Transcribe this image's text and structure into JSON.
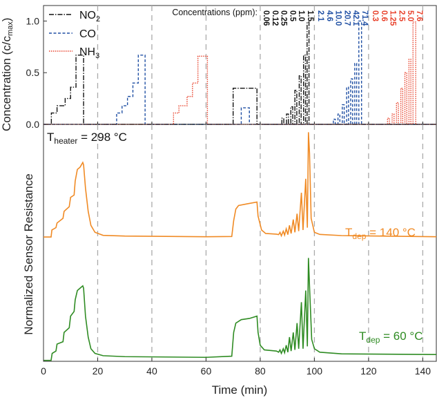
{
  "chart_data": [
    {
      "type": "line",
      "panel": "top",
      "ylabel": "Concentration (c/c",
      "ylabel_sub": "max",
      "ylabel_tail": ")",
      "xlim": [
        0,
        145
      ],
      "ylim": [
        0,
        1.15
      ],
      "yticks": [
        0.0,
        0.5,
        1.0
      ],
      "ytick_labels": [
        "0.0",
        "0.5",
        "1.0"
      ],
      "legend": [
        {
          "name": "NO",
          "sub": "2",
          "color": "#111111",
          "dash": "7,2,1.5,2"
        },
        {
          "name": "CO",
          "sub": "",
          "color": "#1f4fa3",
          "dash": "4,2.5"
        },
        {
          "name": "NH",
          "sub": "3",
          "color": "#e8402a",
          "dash": "1.5,1.5"
        }
      ],
      "conc_title": "Concentrations (ppm):",
      "conc_groups": [
        {
          "color": "#111111",
          "values": [
            "0.06",
            "0.12",
            "0.25",
            "0.5",
            "1.0",
            "1.5"
          ]
        },
        {
          "color": "#1f4fa3",
          "values": [
            "2.1",
            "4.6",
            "10.0",
            "20.7",
            "42.1",
            "71.4"
          ]
        },
        {
          "color": "#e8402a",
          "values": [
            "0.3",
            "0.6",
            "1.25",
            "2.5",
            "5.0",
            "7.6"
          ]
        }
      ],
      "series": [
        {
          "name": "NO2",
          "color": "#111111",
          "dash": "7,2,1.5,2",
          "points": [
            [
              0,
              0
            ],
            [
              2.9,
              0
            ],
            [
              2.9,
              0.11
            ],
            [
              5,
              0.11
            ],
            [
              5,
              0.18
            ],
            [
              8,
              0.18
            ],
            [
              8,
              0.25
            ],
            [
              10,
              0.25
            ],
            [
              10,
              0.36
            ],
            [
              12,
              0.36
            ],
            [
              12,
              0.67
            ],
            [
              14.8,
              0.67
            ],
            [
              14.8,
              0
            ],
            [
              70,
              0
            ],
            [
              70,
              0.35
            ],
            [
              78.8,
              0.35
            ],
            [
              78.8,
              0
            ],
            [
              88,
              0
            ],
            [
              88,
              0.06
            ],
            [
              88.7,
              0.06
            ],
            [
              88.7,
              0
            ],
            [
              89.7,
              0
            ],
            [
              89.7,
              0.1
            ],
            [
              90.4,
              0.1
            ],
            [
              90.4,
              0
            ],
            [
              91.3,
              0
            ],
            [
              91.3,
              0.17
            ],
            [
              92,
              0.17
            ],
            [
              92,
              0
            ],
            [
              92.8,
              0
            ],
            [
              92.8,
              0.33
            ],
            [
              93.5,
              0.33
            ],
            [
              93.5,
              0
            ],
            [
              94.4,
              0
            ],
            [
              94.4,
              0.47
            ],
            [
              95.1,
              0.47
            ],
            [
              95.1,
              0
            ],
            [
              96,
              0
            ],
            [
              96,
              0.67
            ],
            [
              96.7,
              0.67
            ],
            [
              96.7,
              0
            ],
            [
              97.3,
              0
            ],
            [
              97.3,
              0.99
            ],
            [
              98,
              0.99
            ],
            [
              98,
              0
            ],
            [
              145,
              0
            ]
          ]
        },
        {
          "name": "CO",
          "color": "#1f4fa3",
          "dash": "4,2.5",
          "points": [
            [
              0,
              0
            ],
            [
              27,
              0
            ],
            [
              27,
              0.11
            ],
            [
              29,
              0.11
            ],
            [
              29,
              0.18
            ],
            [
              31,
              0.18
            ],
            [
              31,
              0.27
            ],
            [
              33,
              0.27
            ],
            [
              33,
              0.4
            ],
            [
              35,
              0.4
            ],
            [
              35,
              0.67
            ],
            [
              37.5,
              0.67
            ],
            [
              37.5,
              0
            ],
            [
              73,
              0
            ],
            [
              73,
              0.16
            ],
            [
              76,
              0.16
            ],
            [
              76,
              0
            ],
            [
              107,
              0
            ],
            [
              107,
              0.05
            ],
            [
              107.7,
              0.05
            ],
            [
              107.7,
              0
            ],
            [
              108.7,
              0
            ],
            [
              108.7,
              0.1
            ],
            [
              109.4,
              0.1
            ],
            [
              109.4,
              0
            ],
            [
              110.3,
              0
            ],
            [
              110.3,
              0.19
            ],
            [
              111,
              0.19
            ],
            [
              111,
              0
            ],
            [
              111.9,
              0
            ],
            [
              111.9,
              0.36
            ],
            [
              112.6,
              0.36
            ],
            [
              112.6,
              0
            ],
            [
              113.4,
              0
            ],
            [
              113.4,
              0.44
            ],
            [
              114.1,
              0.44
            ],
            [
              114.1,
              0
            ],
            [
              114.9,
              0
            ],
            [
              114.9,
              0.59
            ],
            [
              115.6,
              0.59
            ],
            [
              115.6,
              0
            ],
            [
              116.4,
              0
            ],
            [
              116.4,
              1.0
            ],
            [
              117.4,
              1.0
            ],
            [
              117.4,
              0
            ],
            [
              145,
              0
            ]
          ]
        },
        {
          "name": "NH3",
          "color": "#e8402a",
          "dash": "1.5,1.5",
          "points": [
            [
              0,
              0
            ],
            [
              48,
              0
            ],
            [
              48,
              0.11
            ],
            [
              50,
              0.11
            ],
            [
              50,
              0.18
            ],
            [
              53,
              0.18
            ],
            [
              53,
              0.27
            ],
            [
              55,
              0.27
            ],
            [
              55,
              0.4
            ],
            [
              57,
              0.4
            ],
            [
              57,
              0.66
            ],
            [
              60.5,
              0.66
            ],
            [
              60.5,
              0
            ],
            [
              127,
              0
            ],
            [
              127,
              0.06
            ],
            [
              127.7,
              0.06
            ],
            [
              127.7,
              0
            ],
            [
              128.7,
              0
            ],
            [
              128.7,
              0.1
            ],
            [
              129.4,
              0.1
            ],
            [
              129.4,
              0
            ],
            [
              130.3,
              0
            ],
            [
              130.3,
              0.21
            ],
            [
              131,
              0.21
            ],
            [
              131,
              0
            ],
            [
              131.9,
              0
            ],
            [
              131.9,
              0.35
            ],
            [
              132.6,
              0.35
            ],
            [
              132.6,
              0
            ],
            [
              133.4,
              0
            ],
            [
              133.4,
              0.5
            ],
            [
              134.1,
              0.5
            ],
            [
              134.1,
              0
            ],
            [
              134.9,
              0
            ],
            [
              134.9,
              0.63
            ],
            [
              135.6,
              0.63
            ],
            [
              135.6,
              0
            ],
            [
              136.4,
              0
            ],
            [
              136.4,
              0.99
            ],
            [
              137.4,
              0.99
            ],
            [
              137.4,
              0
            ],
            [
              145,
              0
            ]
          ]
        }
      ]
    },
    {
      "type": "line",
      "panel": "bottom",
      "ylabel": "Normalized Sensor Resistance",
      "xlabel": "Time (min)",
      "xlim": [
        0,
        145
      ],
      "ylim": [
        0,
        1
      ],
      "xticks": [
        0,
        20,
        40,
        60,
        80,
        100,
        120,
        140
      ],
      "xtick_labels": [
        "0",
        "20",
        "40",
        "60",
        "80",
        "100",
        "120",
        "140"
      ],
      "grid_x": [
        20,
        40,
        60,
        80,
        100,
        120,
        140
      ],
      "annotation_heater": {
        "text": "T",
        "sub": "heater",
        "tail": " = 298 °C"
      },
      "series": [
        {
          "name": "T_dep = 140 °C",
          "label": "T",
          "label_sub": "dep",
          "label_tail": " = 140 °C",
          "color": "#f08a24",
          "points": [
            [
              0,
              0.54
            ],
            [
              2.8,
              0.54
            ],
            [
              3.1,
              0.57
            ],
            [
              4.6,
              0.58
            ],
            [
              5,
              0.6
            ],
            [
              7.2,
              0.62
            ],
            [
              7.6,
              0.65
            ],
            [
              9.5,
              0.67
            ],
            [
              10,
              0.71
            ],
            [
              11.3,
              0.72
            ],
            [
              11.7,
              0.78
            ],
            [
              12.5,
              0.83
            ],
            [
              13.5,
              0.84
            ],
            [
              14.5,
              0.86
            ],
            [
              14.8,
              0.85
            ],
            [
              15.5,
              0.75
            ],
            [
              16.5,
              0.65
            ],
            [
              17.5,
              0.59
            ],
            [
              19,
              0.56
            ],
            [
              22,
              0.547
            ],
            [
              30,
              0.544
            ],
            [
              60,
              0.541
            ],
            [
              69.5,
              0.542
            ],
            [
              70.2,
              0.61
            ],
            [
              71,
              0.66
            ],
            [
              72,
              0.675
            ],
            [
              75,
              0.682
            ],
            [
              78.8,
              0.69
            ],
            [
              79.2,
              0.63
            ],
            [
              80.5,
              0.57
            ],
            [
              82,
              0.555
            ],
            [
              86,
              0.552
            ],
            [
              86.8,
              0.55
            ],
            [
              87.3,
              0.56
            ],
            [
              87.8,
              0.545
            ],
            [
              88.5,
              0.565
            ],
            [
              89,
              0.548
            ],
            [
              89.6,
              0.575
            ],
            [
              90.2,
              0.55
            ],
            [
              90.8,
              0.59
            ],
            [
              91.4,
              0.555
            ],
            [
              92.2,
              0.615
            ],
            [
              92.8,
              0.56
            ],
            [
              93.6,
              0.64
            ],
            [
              94.2,
              0.565
            ],
            [
              95.2,
              0.73
            ],
            [
              95.8,
              0.57
            ],
            [
              96.8,
              0.79
            ],
            [
              97.4,
              0.58
            ],
            [
              97.8,
              0.99
            ],
            [
              98.2,
              0.9
            ],
            [
              98.8,
              0.62
            ],
            [
              100,
              0.56
            ],
            [
              102,
              0.551
            ],
            [
              110,
              0.546
            ],
            [
              145,
              0.541
            ]
          ]
        },
        {
          "name": "T_dep = 60 °C",
          "label": "T",
          "label_sub": "dep",
          "label_tail": " = 60 °C",
          "color": "#2e8b22",
          "points": [
            [
              0,
              0.01
            ],
            [
              2.8,
              0.01
            ],
            [
              3.2,
              0.04
            ],
            [
              4.6,
              0.05
            ],
            [
              5,
              0.08
            ],
            [
              7.2,
              0.09
            ],
            [
              7.6,
              0.13
            ],
            [
              9.5,
              0.15
            ],
            [
              10,
              0.2
            ],
            [
              11.3,
              0.22
            ],
            [
              11.7,
              0.27
            ],
            [
              12.5,
              0.31
            ],
            [
              13.5,
              0.32
            ],
            [
              14.5,
              0.33
            ],
            [
              14.8,
              0.32
            ],
            [
              15.5,
              0.2
            ],
            [
              16.5,
              0.11
            ],
            [
              17.5,
              0.06
            ],
            [
              19,
              0.04
            ],
            [
              22,
              0.03
            ],
            [
              30,
              0.026
            ],
            [
              60,
              0.023
            ],
            [
              69.5,
              0.028
            ],
            [
              70.2,
              0.13
            ],
            [
              71,
              0.17
            ],
            [
              73,
              0.185
            ],
            [
              76,
              0.19
            ],
            [
              78.8,
              0.2
            ],
            [
              79.2,
              0.13
            ],
            [
              80,
              0.075
            ],
            [
              81.5,
              0.055
            ],
            [
              86,
              0.05
            ],
            [
              86.8,
              0.045
            ],
            [
              87.3,
              0.055
            ],
            [
              87.8,
              0.04
            ],
            [
              88.5,
              0.06
            ],
            [
              89,
              0.043
            ],
            [
              89.6,
              0.075
            ],
            [
              90.2,
              0.045
            ],
            [
              90.8,
              0.11
            ],
            [
              91.4,
              0.05
            ],
            [
              92.2,
              0.13
            ],
            [
              92.8,
              0.055
            ],
            [
              93.6,
              0.17
            ],
            [
              94.2,
              0.06
            ],
            [
              95.2,
              0.26
            ],
            [
              95.8,
              0.06
            ],
            [
              96.8,
              0.31
            ],
            [
              97.4,
              0.07
            ],
            [
              97.8,
              0.45
            ],
            [
              98.3,
              0.3
            ],
            [
              99,
              0.1
            ],
            [
              100,
              0.06
            ],
            [
              102,
              0.045
            ],
            [
              110,
              0.038
            ],
            [
              145,
              0.035
            ]
          ]
        }
      ]
    }
  ]
}
